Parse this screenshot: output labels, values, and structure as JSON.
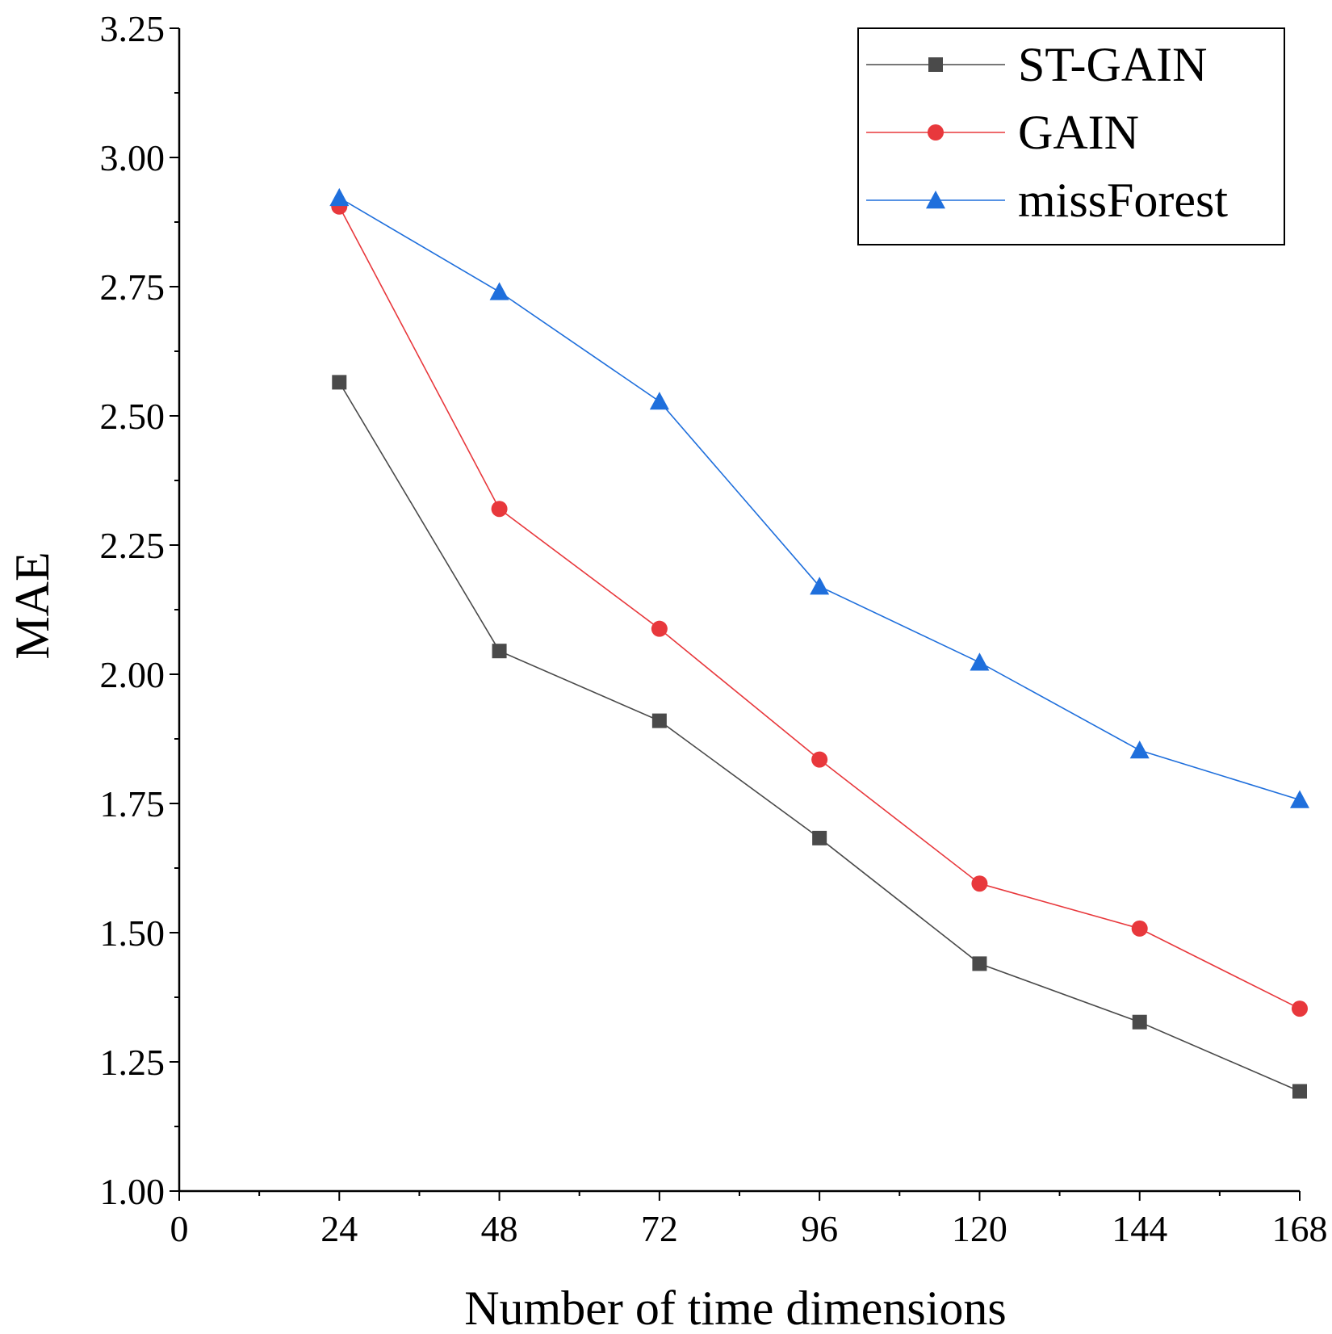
{
  "chart_data": {
    "type": "line",
    "title": "",
    "xlabel": "Number of time dimensions",
    "ylabel": "MAE",
    "xlim": [
      0,
      168
    ],
    "ylim": [
      1.0,
      3.25
    ],
    "xticks": [
      0,
      24,
      48,
      72,
      96,
      120,
      144,
      168
    ],
    "xtick_labels": [
      "0",
      "24",
      "48",
      "72",
      "96",
      "120",
      "144",
      "168"
    ],
    "yticks": [
      1.0,
      1.25,
      1.5,
      1.75,
      2.0,
      2.25,
      2.5,
      2.75,
      3.0,
      3.25
    ],
    "ytick_labels": [
      "1.00",
      "1.25",
      "1.50",
      "1.75",
      "2.00",
      "2.25",
      "2.50",
      "2.75",
      "3.00",
      "3.25"
    ],
    "legend_position": "top-right",
    "grid": false,
    "x": [
      24,
      48,
      72,
      96,
      120,
      144,
      168
    ],
    "series": [
      {
        "name": "ST-GAIN",
        "color": "#4a4a4a",
        "marker": "square",
        "values": [
          2.565,
          2.045,
          1.91,
          1.683,
          1.44,
          1.327,
          1.193
        ]
      },
      {
        "name": "GAIN",
        "color": "#e8383c",
        "marker": "circle",
        "values": [
          2.905,
          2.32,
          2.088,
          1.835,
          1.595,
          1.508,
          1.353
        ]
      },
      {
        "name": "missForest",
        "color": "#1f6fdc",
        "marker": "triangle",
        "values": [
          2.922,
          2.74,
          2.528,
          2.17,
          2.023,
          1.853,
          1.757
        ]
      }
    ]
  }
}
